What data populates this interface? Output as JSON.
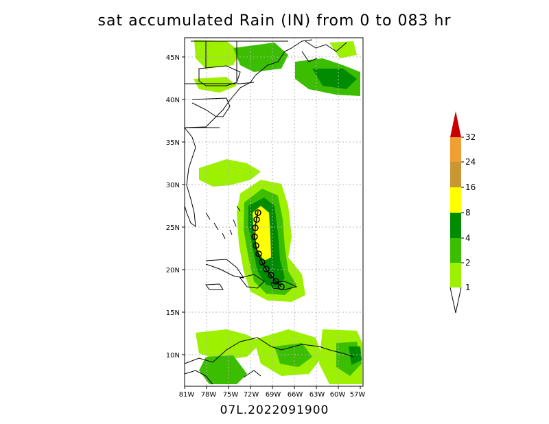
{
  "title": "sat accumulated Rain (IN) from 0 to 083 hr",
  "subtitle": "07L.2022091900",
  "map": {
    "lon_range": [
      -81,
      -56
    ],
    "lat_range": [
      6,
      47
    ],
    "lat_ticks": [
      "45N",
      "40N",
      "35N",
      "30N",
      "25N",
      "20N",
      "15N",
      "10N"
    ],
    "lon_ticks": [
      "81W",
      "78W",
      "75W",
      "72W",
      "69W",
      "66W",
      "63W",
      "60W",
      "57W"
    ],
    "grid": true
  },
  "colorbar": {
    "levels": [
      "1",
      "2",
      "4",
      "8",
      "16",
      "24",
      "32"
    ],
    "colors": [
      "#9cf000",
      "#3cbe00",
      "#008c00",
      "#ffff00",
      "#c89632",
      "#f0a032",
      "#c80000"
    ]
  }
}
